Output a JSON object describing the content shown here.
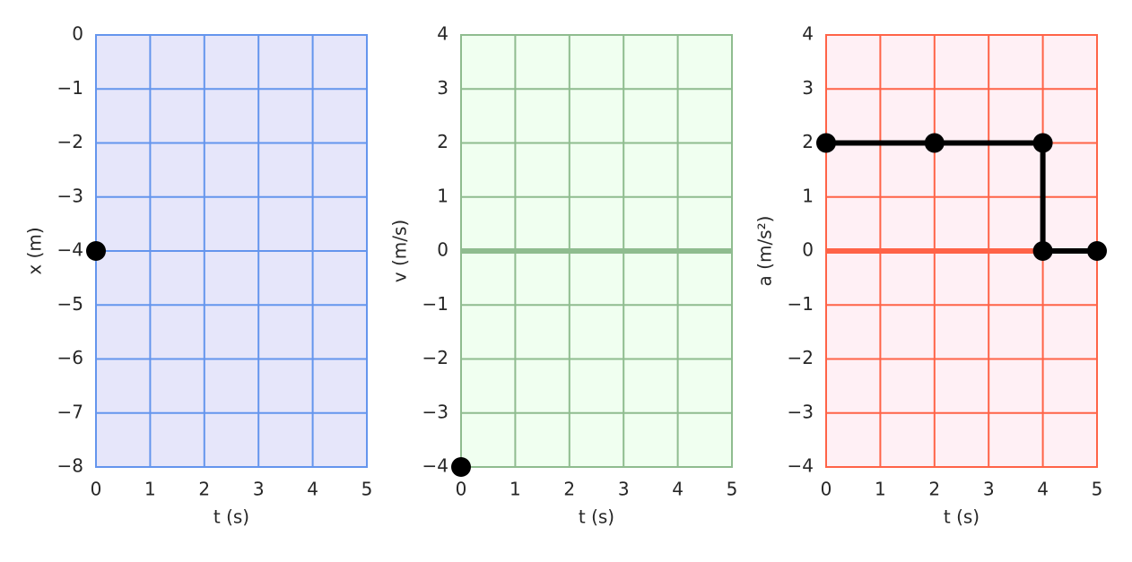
{
  "chart_data": [
    {
      "type": "scatter",
      "xlabel": "t (s)",
      "ylabel": "x (m)",
      "x": [
        0
      ],
      "values": [
        -4
      ],
      "color": "#000000",
      "background": "#e6e6fa",
      "grid_color": "#6495ed",
      "grid": true,
      "xlim": [
        0,
        5
      ],
      "xticks": [
        0,
        1,
        2,
        3,
        4,
        5
      ],
      "ylim": [
        -8,
        0
      ],
      "yticks": [
        {
          "value": -8,
          "label": "−8"
        },
        {
          "value": -7,
          "label": "−7"
        },
        {
          "value": -6,
          "label": "−6"
        },
        {
          "value": -5,
          "label": "−5"
        },
        {
          "value": -4,
          "label": "−4"
        },
        {
          "value": -3,
          "label": "−3"
        },
        {
          "value": -2,
          "label": "−2"
        },
        {
          "value": -1,
          "label": "−1"
        },
        0
      ]
    },
    {
      "type": "scatter",
      "xlabel": "t (s)",
      "ylabel": "v (m/s)",
      "x": [
        0
      ],
      "values": [
        -4
      ],
      "color": "#000000",
      "background": "#f0fff0",
      "grid_color": "#8fbc8f",
      "grid": true,
      "zero_line": true,
      "xlim": [
        0,
        5
      ],
      "xticks": [
        0,
        1,
        2,
        3,
        4,
        5
      ],
      "ylim": [
        -4,
        4
      ],
      "yticks": [
        {
          "value": -4,
          "label": "−4"
        },
        {
          "value": -3,
          "label": "−3"
        },
        {
          "value": -2,
          "label": "−2"
        },
        {
          "value": -1,
          "label": "−1"
        },
        0,
        1,
        2,
        3,
        4
      ]
    },
    {
      "type": "line",
      "xlabel": "t (s)",
      "ylabel": "a (m/s²)",
      "x": [
        0,
        2,
        4,
        4,
        5
      ],
      "values": [
        2,
        2,
        2,
        0,
        0
      ],
      "color": "#000000",
      "background": "#fff0f5",
      "grid_color": "#ff6347",
      "grid": true,
      "zero_line": true,
      "xlim": [
        0,
        5
      ],
      "xticks": [
        0,
        1,
        2,
        3,
        4,
        5
      ],
      "ylim": [
        -4,
        4
      ],
      "yticks": [
        {
          "value": -4,
          "label": "−4"
        },
        {
          "value": -3,
          "label": "−3"
        },
        {
          "value": -2,
          "label": "−2"
        },
        {
          "value": -1,
          "label": "−1"
        },
        0,
        1,
        2,
        3,
        4
      ]
    }
  ]
}
